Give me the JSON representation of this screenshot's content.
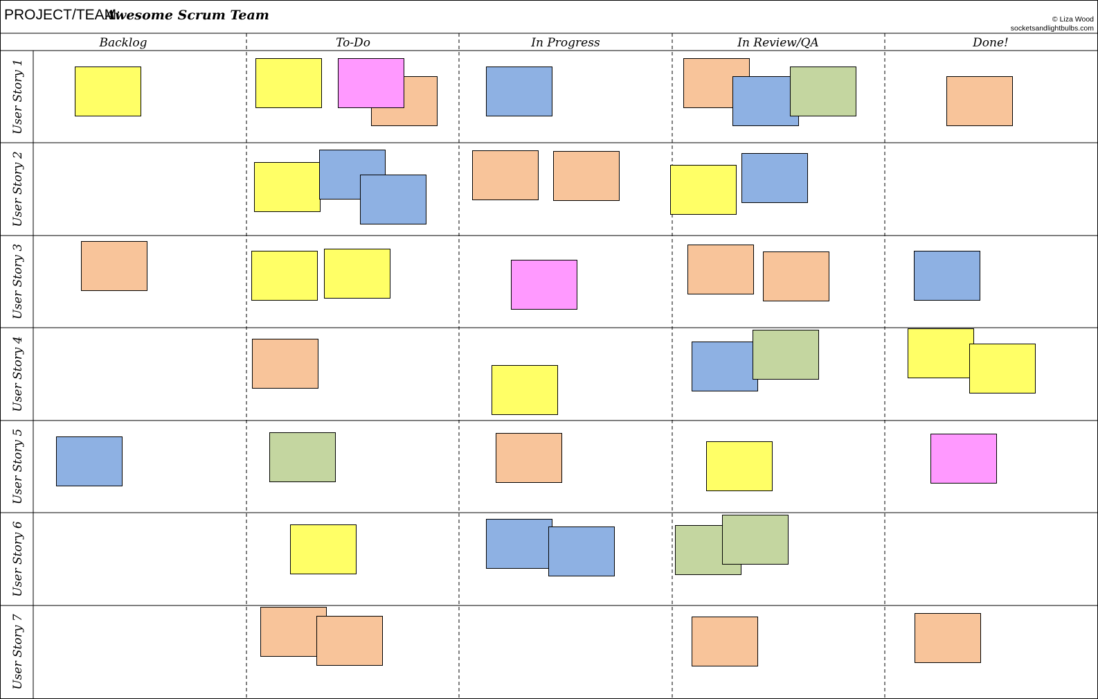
{
  "header": {
    "project_label": "PROJECT/TEAM:",
    "team_name": "Awesome Scrum Team",
    "credit_author": "© Liza Wood",
    "credit_site": "socketsandlightbulbs.com"
  },
  "columns": [
    "Backlog",
    "To-Do",
    "In Progress",
    "In Review/QA",
    "Done!"
  ],
  "rows": [
    "User Story 1",
    "User Story 2",
    "User Story 3",
    "User Story 4",
    "User Story 5",
    "User Story 6",
    "User Story 7"
  ],
  "colors": {
    "yellow": "#ffff66",
    "pink": "#ff99ff",
    "orange": "#f8c49a",
    "blue": "#8eb1e3",
    "green": "#c4d6a0",
    "border": "#000000"
  },
  "cards_by_cell": [
    [
      [
        "yellow"
      ],
      [
        "orange",
        "yellow",
        "pink"
      ],
      [
        "blue"
      ],
      [
        "orange",
        "blue",
        "green"
      ],
      [
        "orange"
      ]
    ],
    [
      [],
      [
        "yellow",
        "blue",
        "blue"
      ],
      [
        "orange",
        "orange"
      ],
      [
        "yellow",
        "blue"
      ],
      []
    ],
    [
      [
        "orange"
      ],
      [
        "yellow",
        "yellow"
      ],
      [
        "pink"
      ],
      [
        "orange",
        "orange"
      ],
      [
        "blue"
      ]
    ],
    [
      [],
      [
        "orange"
      ],
      [
        "yellow"
      ],
      [
        "blue",
        "green"
      ],
      [
        "yellow",
        "yellow"
      ]
    ],
    [
      [
        "blue"
      ],
      [
        "green"
      ],
      [
        "orange"
      ],
      [
        "yellow"
      ],
      [
        "pink"
      ]
    ],
    [
      [],
      [
        "yellow"
      ],
      [
        "blue",
        "blue"
      ],
      [
        "green",
        "green"
      ],
      []
    ],
    [
      [],
      [
        "orange",
        "orange"
      ],
      [],
      [
        "orange"
      ],
      [
        "orange"
      ]
    ]
  ]
}
